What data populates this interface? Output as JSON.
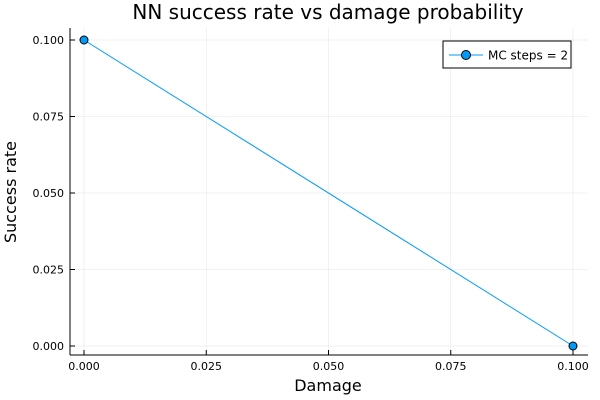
{
  "chart_data": {
    "type": "line",
    "title": "NN success rate vs damage probability",
    "xlabel": "Damage",
    "ylabel": "Success rate",
    "xlim": [
      -0.003,
      0.103
    ],
    "ylim": [
      -0.003,
      0.103
    ],
    "xticks": [
      0.0,
      0.025,
      0.05,
      0.075,
      0.1
    ],
    "xtick_labels": [
      "0.000",
      "0.025",
      "0.050",
      "0.075",
      "0.100"
    ],
    "yticks": [
      0.0,
      0.025,
      0.05,
      0.075,
      0.1
    ],
    "ytick_labels": [
      "0.000",
      "0.025",
      "0.050",
      "0.075",
      "0.100"
    ],
    "grid": true,
    "legend_position": "top-right",
    "series": [
      {
        "name": "MC steps = 2",
        "color": "#009af9",
        "marker": "circle",
        "x": [
          0.0,
          0.1
        ],
        "y": [
          0.1,
          0.0
        ]
      }
    ]
  }
}
